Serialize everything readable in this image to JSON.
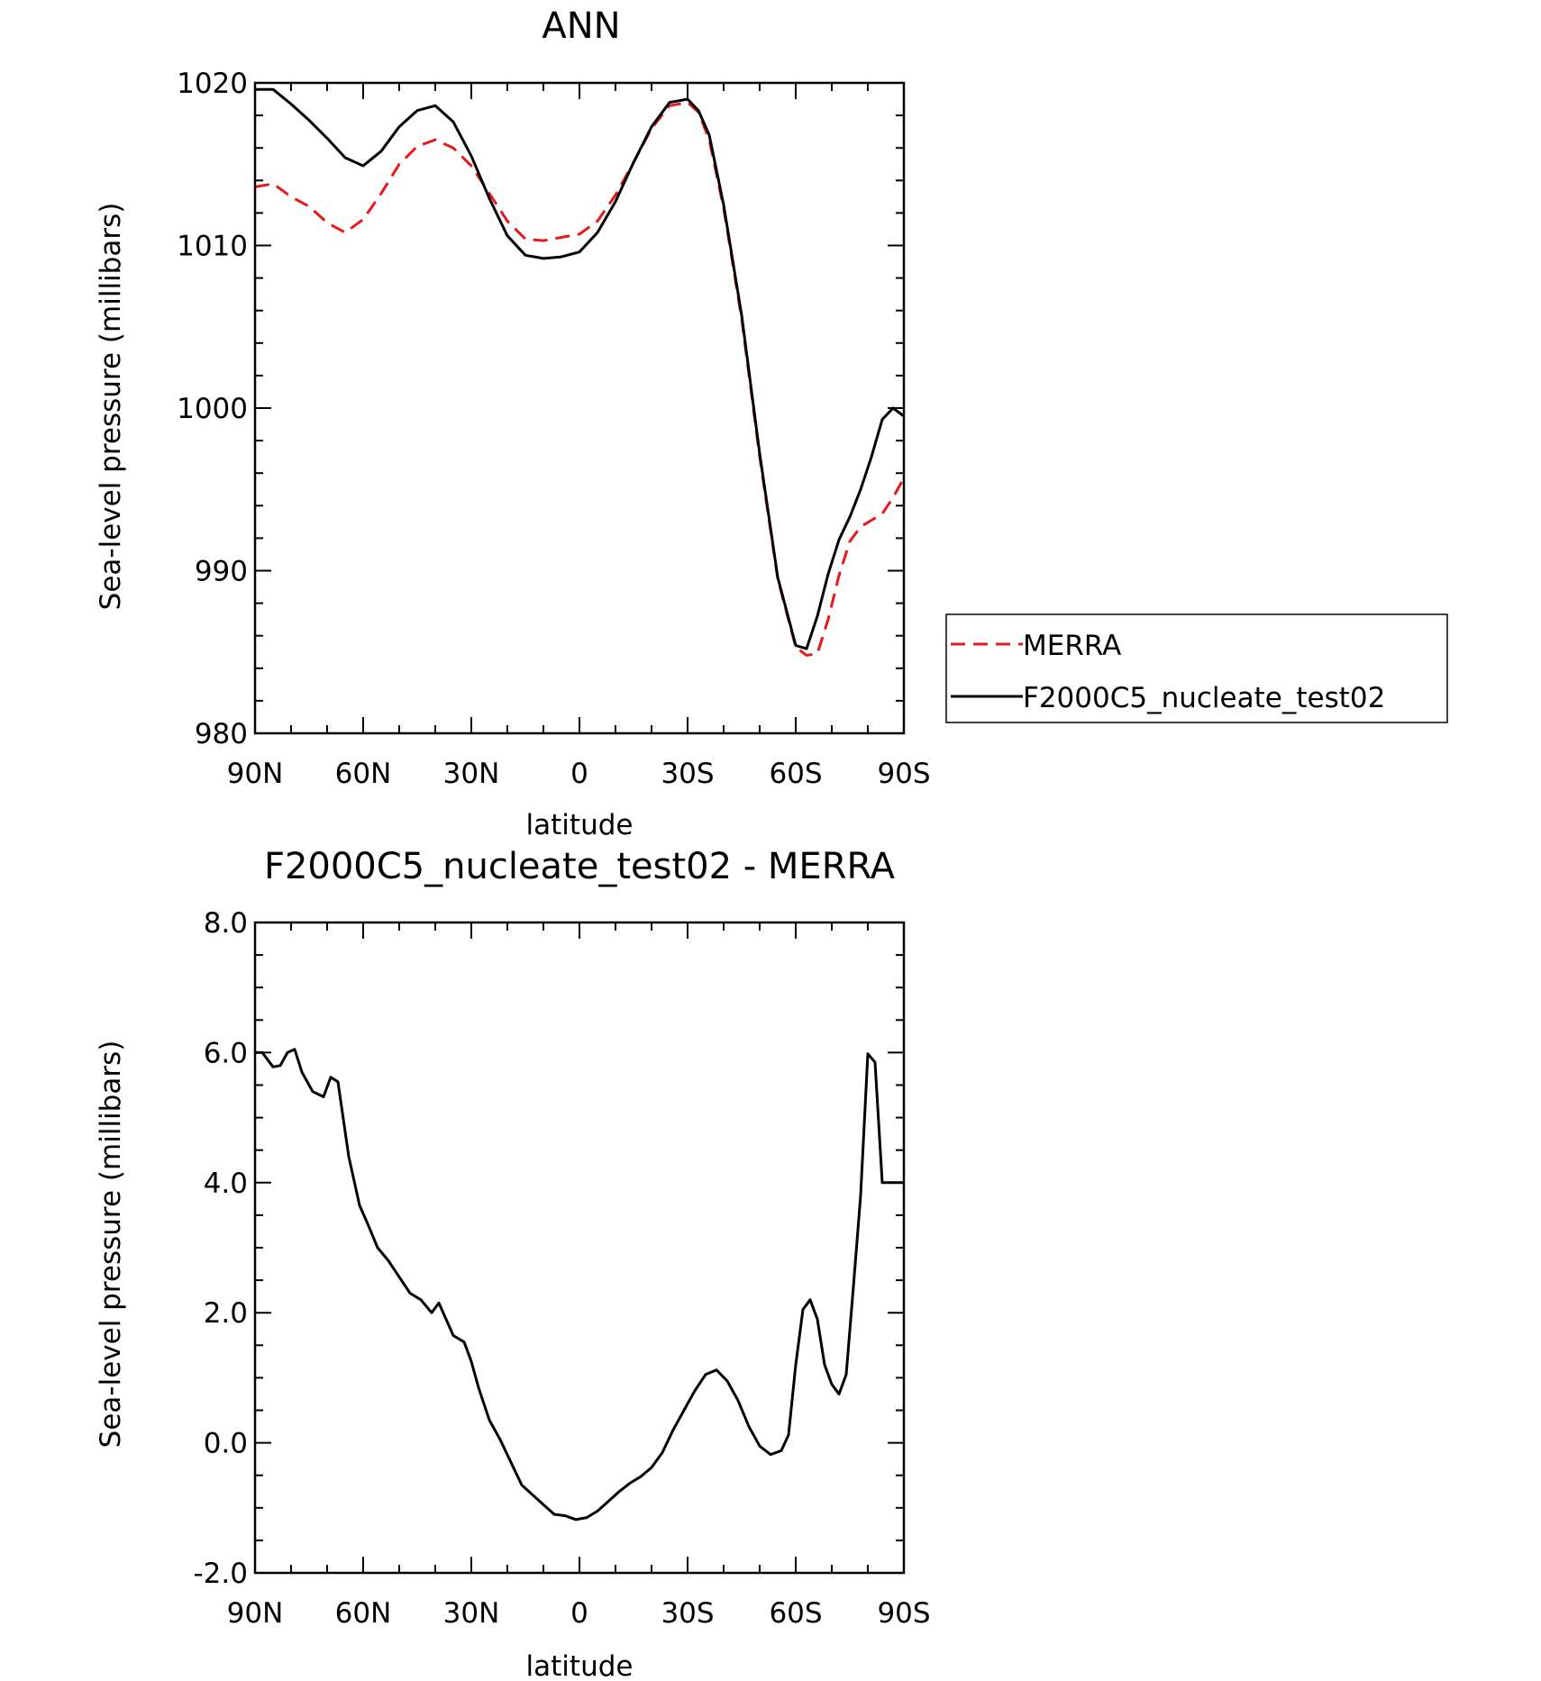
{
  "chart_data": [
    {
      "type": "line",
      "title": "ANN",
      "xlabel": "latitude",
      "ylabel": "Sea-level pressure (millibars)",
      "xlim": [
        90,
        -90
      ],
      "ylim": [
        980,
        1020
      ],
      "x_tick_values": [
        90,
        60,
        30,
        0,
        -30,
        -60,
        -90
      ],
      "x_tick_labels": [
        "90N",
        "60N",
        "30N",
        "0",
        "30S",
        "60S",
        "90S"
      ],
      "y_tick_values": [
        980,
        990,
        1000,
        1010,
        1020
      ],
      "y_tick_labels": [
        "980",
        "990",
        "1000",
        "1010",
        "1020"
      ],
      "grid": false,
      "legend": {
        "placement": "right",
        "entries": [
          "MERRA",
          "F2000C5_nucleate_test02"
        ]
      },
      "series": [
        {
          "name": "MERRA",
          "color": "#e41a1c",
          "style": "dashed",
          "x": [
            90,
            85,
            80,
            75,
            70,
            65,
            60,
            55,
            50,
            45,
            40,
            35,
            30,
            25,
            20,
            15,
            10,
            5,
            0,
            -5,
            -10,
            -15,
            -20,
            -25,
            -30,
            -33,
            -36,
            -40,
            -45,
            -50,
            -55,
            -60,
            -63,
            -66,
            -69,
            -72,
            -75,
            -78,
            -81,
            -84,
            -87,
            -90
          ],
          "y": [
            1013.6,
            1013.8,
            1013.0,
            1012.4,
            1011.4,
            1010.8,
            1011.6,
            1013.2,
            1015.0,
            1016.1,
            1016.5,
            1016.0,
            1014.9,
            1013.2,
            1011.5,
            1010.4,
            1010.3,
            1010.5,
            1010.7,
            1011.5,
            1013.1,
            1015.1,
            1017.2,
            1018.6,
            1018.8,
            1018.2,
            1016.5,
            1012.3,
            1005.5,
            997.0,
            989.5,
            985.3,
            984.8,
            984.9,
            987.0,
            989.7,
            991.8,
            992.7,
            993.1,
            993.5,
            994.5,
            995.7
          ]
        },
        {
          "name": "F2000C5_nucleate_test02",
          "color": "#000000",
          "style": "solid",
          "x": [
            90,
            85,
            80,
            75,
            70,
            65,
            60,
            55,
            50,
            45,
            40,
            35,
            30,
            25,
            20,
            15,
            10,
            5,
            0,
            -5,
            -10,
            -15,
            -20,
            -25,
            -30,
            -33,
            -36,
            -40,
            -45,
            -50,
            -55,
            -60,
            -63,
            -66,
            -69,
            -72,
            -75,
            -78,
            -81,
            -84,
            -87,
            -90
          ],
          "y": [
            1019.6,
            1019.6,
            1018.7,
            1017.7,
            1016.6,
            1015.4,
            1014.9,
            1015.8,
            1017.3,
            1018.3,
            1018.6,
            1017.6,
            1015.5,
            1012.9,
            1010.6,
            1009.4,
            1009.2,
            1009.3,
            1009.6,
            1010.8,
            1012.7,
            1015.1,
            1017.3,
            1018.8,
            1019.0,
            1018.3,
            1016.8,
            1012.5,
            1005.7,
            997.2,
            989.6,
            985.4,
            985.2,
            987.2,
            989.8,
            991.9,
            993.3,
            995.0,
            997.0,
            999.3,
            1000.0,
            999.5
          ]
        }
      ]
    },
    {
      "type": "line",
      "title": "F2000C5_nucleate_test02 - MERRA",
      "xlabel": "latitude",
      "ylabel": "Sea-level pressure (millibars)",
      "xlim": [
        90,
        -90
      ],
      "ylim": [
        -2.0,
        8.0
      ],
      "x_tick_values": [
        90,
        60,
        30,
        0,
        -30,
        -60,
        -90
      ],
      "x_tick_labels": [
        "90N",
        "60N",
        "30N",
        "0",
        "30S",
        "60S",
        "90S"
      ],
      "y_tick_values": [
        -2.0,
        0.0,
        2.0,
        4.0,
        6.0,
        8.0
      ],
      "y_tick_labels": [
        "-2.0",
        "0.0",
        "2.0",
        "4.0",
        "6.0",
        "8.0"
      ],
      "grid": false,
      "series": [
        {
          "color": "#000000",
          "style": "solid",
          "x": [
            90,
            88,
            85,
            83,
            81,
            79,
            77,
            74,
            71,
            69,
            67,
            64,
            61,
            59,
            56,
            53,
            50,
            47,
            44,
            41,
            39,
            37,
            35,
            32,
            30,
            28,
            25,
            22,
            19,
            16,
            13,
            10,
            7,
            4,
            1,
            -2,
            -5,
            -8,
            -11,
            -14,
            -17,
            -20,
            -23,
            -26,
            -29,
            -32,
            -35,
            -38,
            -41,
            -44,
            -47,
            -50,
            -53,
            -56,
            -58,
            -60,
            -62,
            -64,
            -66,
            -68,
            -70,
            -72,
            -74,
            -76,
            -78,
            -80,
            -82,
            -84,
            -86,
            -88,
            -90
          ],
          "y": [
            6.0,
            6.0,
            5.78,
            5.8,
            6.0,
            6.05,
            5.7,
            5.4,
            5.32,
            5.62,
            5.55,
            4.4,
            3.65,
            3.4,
            3.0,
            2.8,
            2.55,
            2.3,
            2.2,
            2.0,
            2.15,
            1.9,
            1.65,
            1.55,
            1.25,
            0.85,
            0.35,
            0.05,
            -0.3,
            -0.65,
            -0.8,
            -0.95,
            -1.1,
            -1.12,
            -1.18,
            -1.15,
            -1.05,
            -0.9,
            -0.75,
            -0.62,
            -0.52,
            -0.38,
            -0.15,
            0.2,
            0.5,
            0.8,
            1.05,
            1.12,
            0.95,
            0.65,
            0.25,
            -0.05,
            -0.18,
            -0.12,
            0.12,
            1.2,
            2.05,
            2.2,
            1.9,
            1.2,
            0.9,
            0.75,
            1.05,
            2.4,
            3.8,
            5.98,
            5.85,
            4.0,
            4.0,
            4.0,
            4.0
          ]
        }
      ]
    }
  ]
}
